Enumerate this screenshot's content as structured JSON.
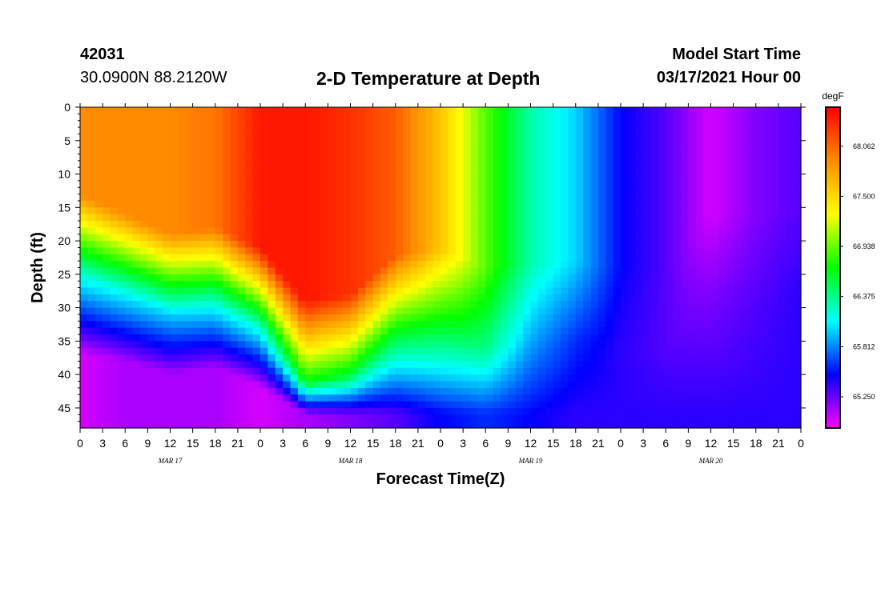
{
  "header": {
    "station_id": "42031",
    "location": "30.0900N 88.2120W",
    "title": "2-D Temperature at Depth",
    "model_start_label": "Model Start Time",
    "model_start_value": "03/17/2021 Hour 00"
  },
  "chart_data": {
    "type": "heatmap",
    "title": "2-D Temperature at Depth",
    "xlabel": "Forecast Time(Z)",
    "ylabel": "Depth (ft)",
    "x_hours_from_start": [
      0,
      96
    ],
    "x_tick_labels": [
      "0",
      "3",
      "6",
      "9",
      "12",
      "15",
      "18",
      "21",
      "0",
      "3",
      "6",
      "9",
      "12",
      "15",
      "18",
      "21",
      "0",
      "3",
      "6",
      "9",
      "12",
      "15",
      "18",
      "21",
      "0",
      "3",
      "6",
      "9",
      "12",
      "15",
      "18",
      "21",
      "0"
    ],
    "day_labels": [
      "MAR 17",
      "MAR 18",
      "MAR 19",
      "MAR 20"
    ],
    "y_range": [
      0,
      48
    ],
    "y_ticks": [
      0,
      5,
      10,
      15,
      20,
      25,
      30,
      35,
      40,
      45
    ],
    "colorbar": {
      "unit": "degF",
      "min": 64.9,
      "max": 68.5,
      "tick_values": [
        68.062,
        67.5,
        66.938,
        66.375,
        65.812,
        65.25
      ],
      "tick_labels": [
        "68.062",
        "67.500",
        "66.938",
        "66.375",
        "65.812",
        "65.250"
      ],
      "colors": [
        "#ff00ff",
        "#0000ff",
        "#00ffff",
        "#00ff00",
        "#ffff00",
        "#ff8c00",
        "#ff0000"
      ]
    },
    "profiles": [
      {
        "hour": 0,
        "surface": 67.9,
        "depth_break": 19,
        "mid": 66.2,
        "bottom_depth": 37,
        "bottom": 65.0
      },
      {
        "hour": 6,
        "surface": 67.9,
        "depth_break": 22,
        "mid": 66.1,
        "bottom_depth": 38,
        "bottom": 65.1
      },
      {
        "hour": 12,
        "surface": 67.9,
        "depth_break": 25,
        "mid": 66.0,
        "bottom_depth": 40,
        "bottom": 65.1
      },
      {
        "hour": 18,
        "surface": 68.0,
        "depth_break": 24,
        "mid": 66.1,
        "bottom_depth": 39,
        "bottom": 65.1
      },
      {
        "hour": 24,
        "surface": 68.4,
        "depth_break": 27,
        "mid": 66.2,
        "bottom_depth": 42,
        "bottom": 65.0
      },
      {
        "hour": 30,
        "surface": 68.4,
        "depth_break": 35,
        "mid": 66.7,
        "bottom_depth": 46,
        "bottom": 65.1
      },
      {
        "hour": 36,
        "surface": 68.3,
        "depth_break": 34,
        "mid": 66.6,
        "bottom_depth": 46,
        "bottom": 65.2
      },
      {
        "hour": 42,
        "surface": 68.1,
        "depth_break": 28,
        "mid": 66.6,
        "bottom_depth": 46,
        "bottom": 65.3
      },
      {
        "hour": 48,
        "surface": 67.6,
        "depth_break": 27,
        "mid": 66.6,
        "bottom_depth": 46,
        "bottom": 65.5
      },
      {
        "hour": 54,
        "surface": 66.9,
        "depth_break": 30,
        "mid": 66.4,
        "bottom_depth": 46,
        "bottom": 65.6
      },
      {
        "hour": 60,
        "surface": 66.3,
        "depth_break": 29,
        "mid": 65.9,
        "bottom_depth": 46,
        "bottom": 65.5
      },
      {
        "hour": 66,
        "surface": 66.0,
        "depth_break": 29,
        "mid": 65.6,
        "bottom_depth": 46,
        "bottom": 65.4
      },
      {
        "hour": 72,
        "surface": 65.5,
        "depth_break": 30,
        "mid": 65.4,
        "bottom_depth": 46,
        "bottom": 65.4
      },
      {
        "hour": 78,
        "surface": 65.3,
        "depth_break": 30,
        "mid": 65.3,
        "bottom_depth": 46,
        "bottom": 65.4
      },
      {
        "hour": 84,
        "surface": 65.0,
        "depth_break": 22,
        "mid": 65.2,
        "bottom_depth": 46,
        "bottom": 65.4
      },
      {
        "hour": 90,
        "surface": 65.2,
        "depth_break": 22,
        "mid": 65.3,
        "bottom_depth": 46,
        "bottom": 65.4
      },
      {
        "hour": 96,
        "surface": 65.3,
        "depth_break": 22,
        "mid": 65.4,
        "bottom_depth": 46,
        "bottom": 65.4
      }
    ]
  }
}
